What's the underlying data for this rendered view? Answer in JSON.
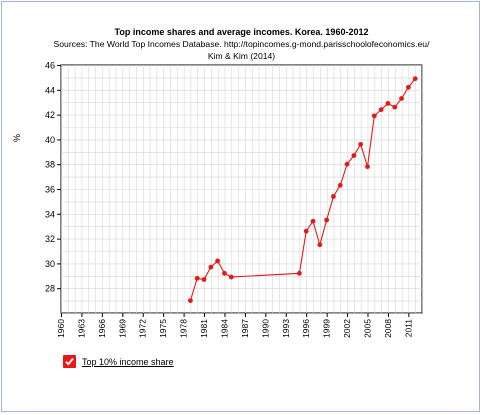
{
  "chart_data": {
    "type": "line",
    "title": "Top income shares and average incomes. Korea. 1960-2012",
    "subtitle": "Sources: The World Top Incomes Database. http://topincomes.g-mond.parisschoolofeconomics.eu/",
    "source_line2": "Kim & Kim (2014)",
    "ylabel": "%",
    "xlim": [
      1960,
      2013
    ],
    "ylim": [
      26,
      46
    ],
    "yticks": [
      28,
      30,
      32,
      34,
      36,
      38,
      40,
      42,
      44,
      46
    ],
    "xticks": [
      "1960",
      "1963",
      "1966",
      "1969",
      "1972",
      "1975",
      "1978",
      "1981",
      "1984",
      "1987",
      "1990",
      "1993",
      "1996",
      "1999",
      "2002",
      "2005",
      "2008",
      "2011"
    ],
    "grid": true,
    "legend_position": "bottom-left",
    "series": [
      {
        "name": "Top 10% income share",
        "color": "#e61919",
        "points": [
          [
            1979,
            27.0
          ],
          [
            1980,
            28.8
          ],
          [
            1981,
            28.7
          ],
          [
            1982,
            29.7
          ],
          [
            1983,
            30.2
          ],
          [
            1984,
            29.2
          ],
          [
            1985,
            28.9
          ],
          [
            1995,
            29.2
          ],
          [
            1996,
            32.6
          ],
          [
            1997,
            33.4
          ],
          [
            1998,
            31.5
          ],
          [
            1999,
            33.5
          ],
          [
            2000,
            35.4
          ],
          [
            2001,
            36.3
          ],
          [
            2002,
            38.0
          ],
          [
            2003,
            38.7
          ],
          [
            2004,
            39.6
          ],
          [
            2005,
            37.8
          ],
          [
            2006,
            41.9
          ],
          [
            2007,
            42.4
          ],
          [
            2008,
            42.9
          ],
          [
            2009,
            42.6
          ],
          [
            2010,
            43.3
          ],
          [
            2011,
            44.2
          ],
          [
            2012,
            44.9
          ]
        ]
      }
    ]
  }
}
